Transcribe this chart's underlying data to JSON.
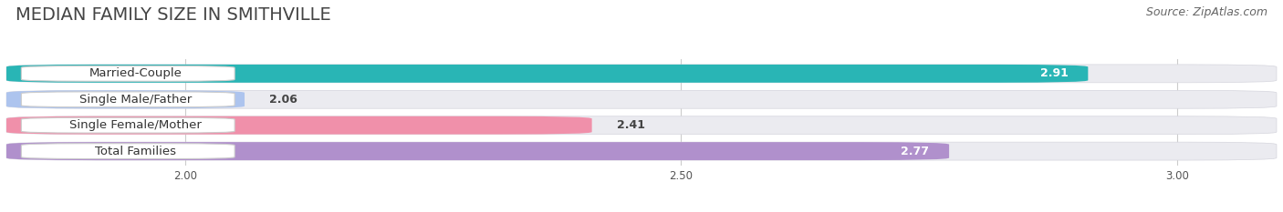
{
  "title": "MEDIAN FAMILY SIZE IN SMITHVILLE",
  "source": "Source: ZipAtlas.com",
  "categories": [
    "Married-Couple",
    "Single Male/Father",
    "Single Female/Mother",
    "Total Families"
  ],
  "values": [
    2.91,
    2.06,
    2.41,
    2.77
  ],
  "bar_colors": [
    "#29b5b5",
    "#adc4ee",
    "#f090aa",
    "#b090cc"
  ],
  "label_colors": [
    "#ffffff",
    "#333333",
    "#333333",
    "#ffffff"
  ],
  "xlim_min": 1.82,
  "xlim_max": 3.1,
  "xticks": [
    2.0,
    2.5,
    3.0
  ],
  "bar_height": 0.7,
  "background_color": "#ffffff",
  "bar_bg_color": "#ebebf0",
  "title_fontsize": 14,
  "source_fontsize": 9,
  "label_fontsize": 9.5,
  "value_fontsize": 9
}
